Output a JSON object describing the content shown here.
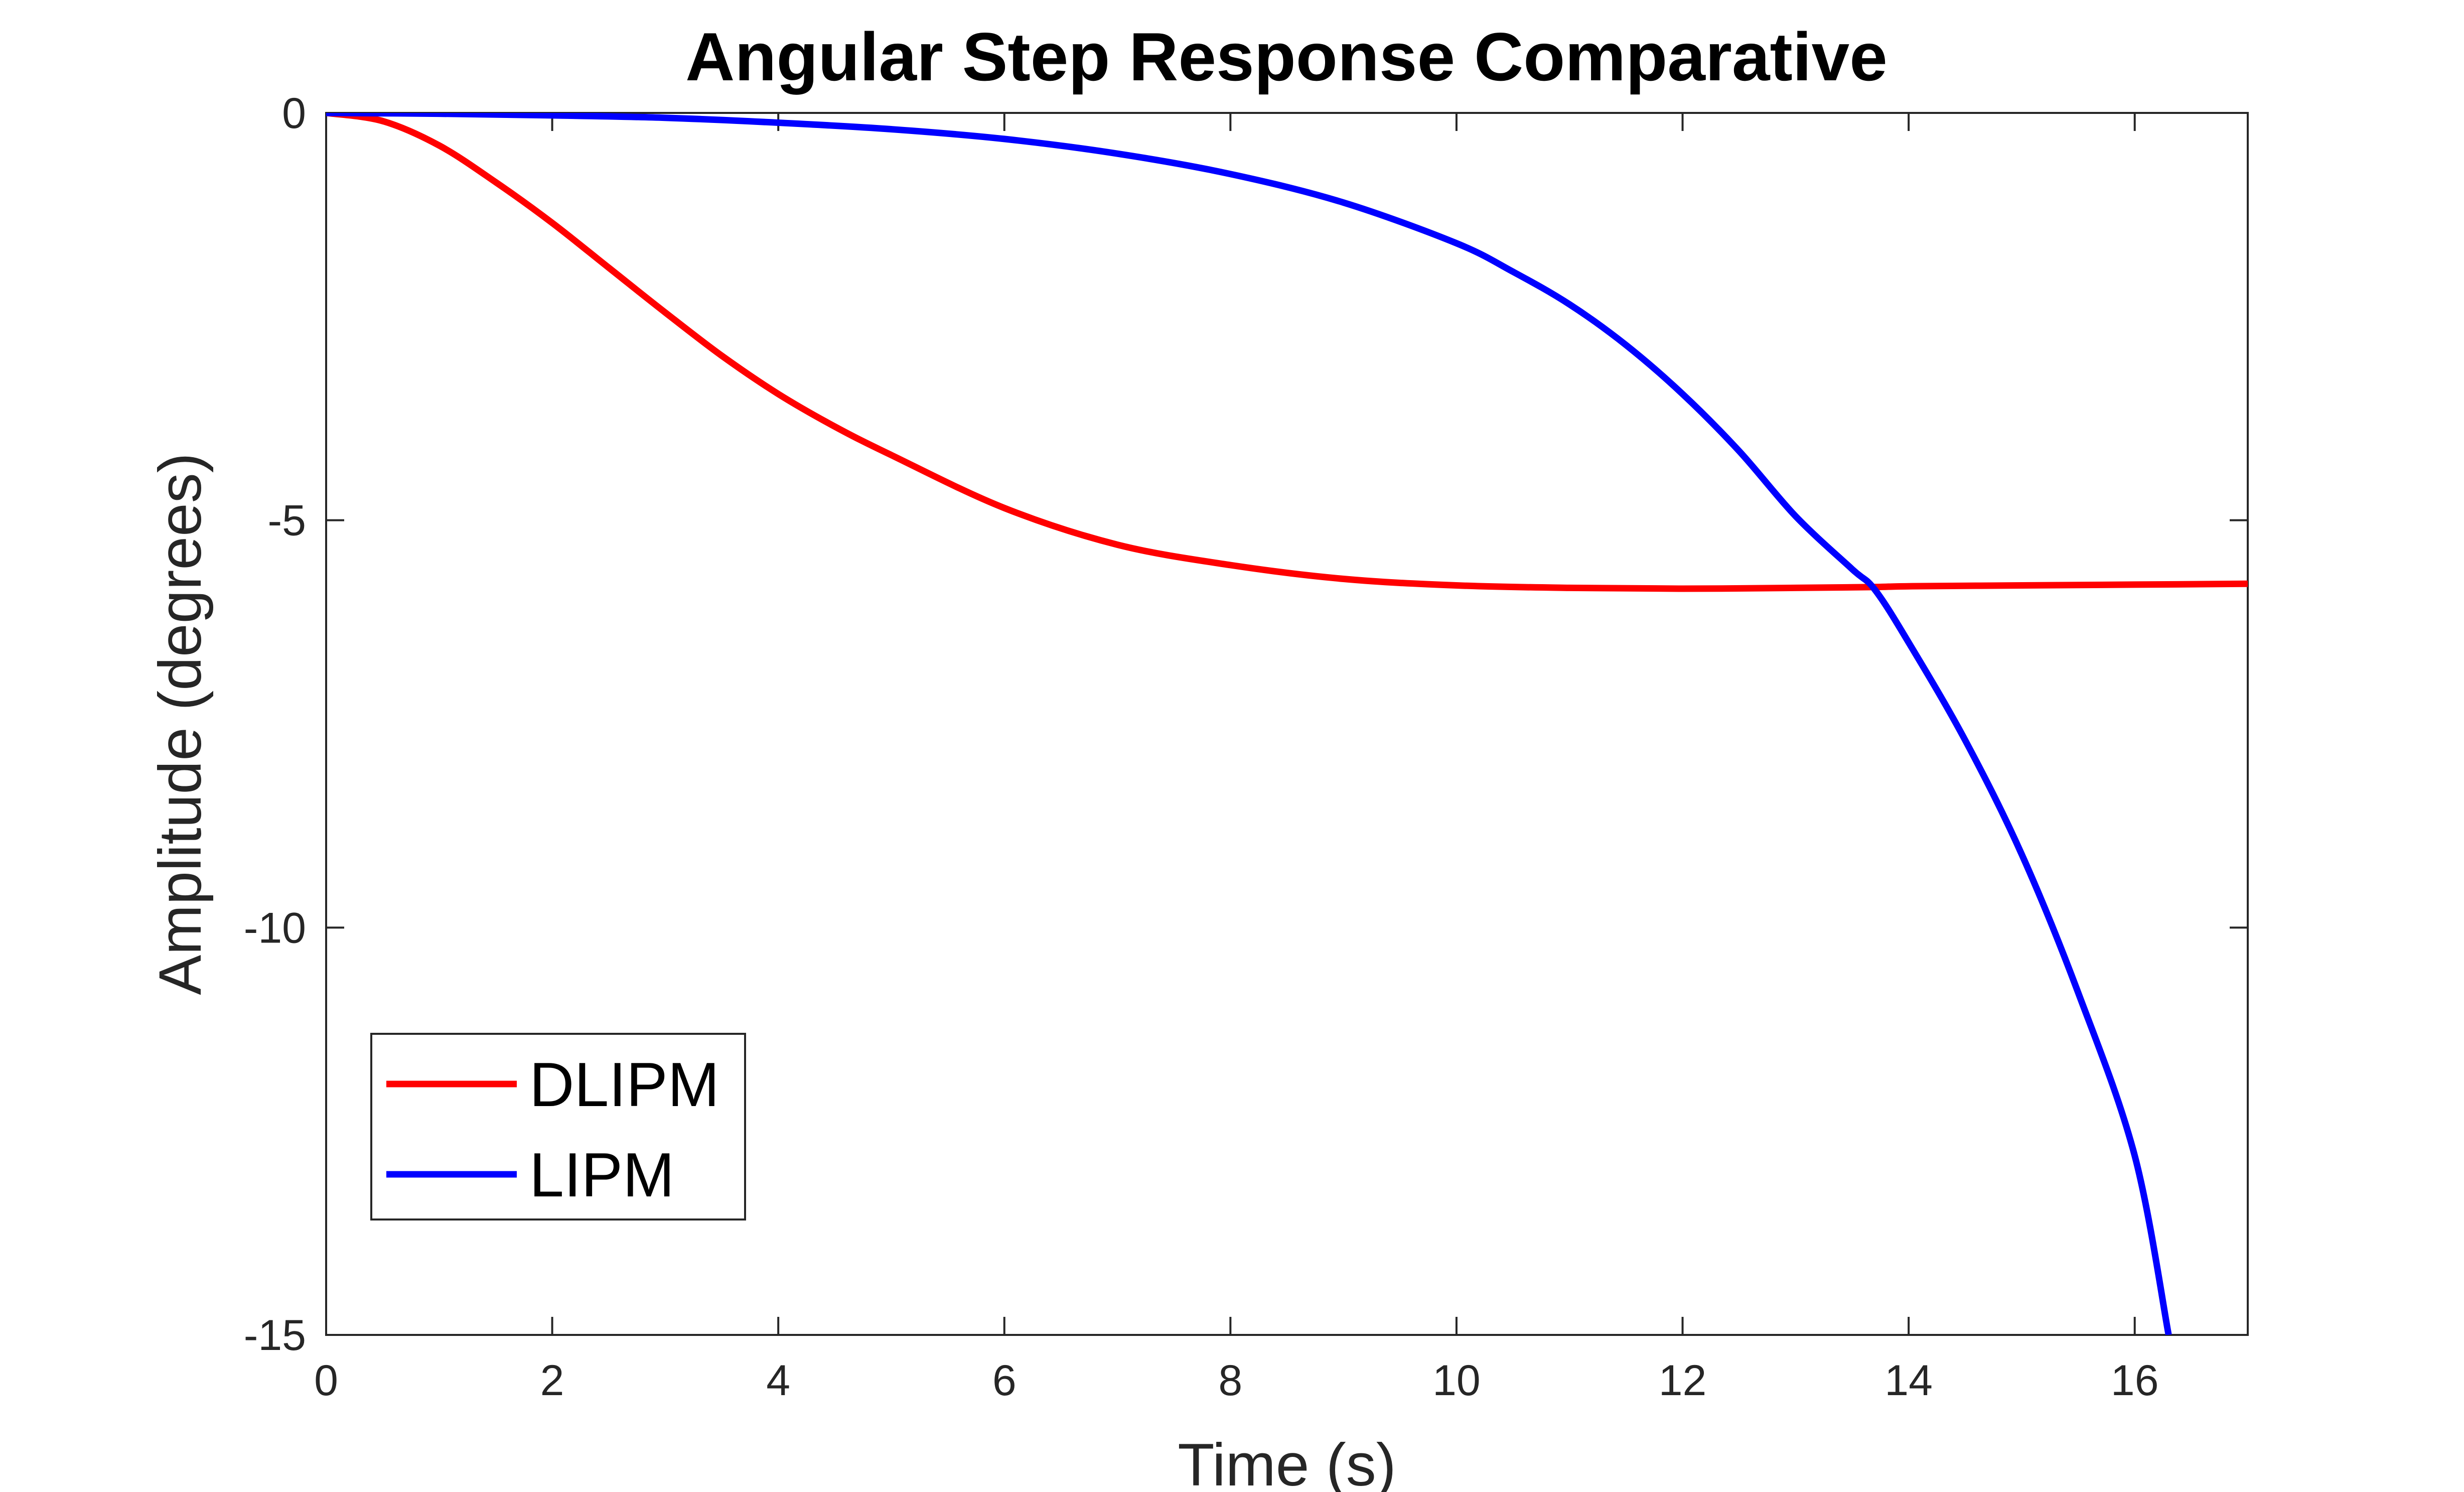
{
  "chart_data": {
    "type": "line",
    "title": "Angular Step Response Comparative",
    "xlabel": "Time (s)",
    "ylabel": "Amplitude (degrees)",
    "xlim": [
      0,
      17
    ],
    "ylim": [
      -15,
      0
    ],
    "xticks": [
      0,
      2,
      4,
      6,
      8,
      10,
      12,
      14,
      16
    ],
    "yticks": [
      0,
      -5,
      -10,
      -15
    ],
    "xtick_labels": [
      "0",
      "2",
      "4",
      "6",
      "8",
      "10",
      "12",
      "14",
      "16"
    ],
    "ytick_labels": [
      "0",
      "-5",
      "-10",
      "-15"
    ],
    "grid": false,
    "legend_position": "bottom-left",
    "series": [
      {
        "name": "DLIPM",
        "color": "#ff0000",
        "x": [
          0,
          0.5,
          1,
          1.5,
          2,
          2.5,
          3,
          3.5,
          4,
          4.5,
          5,
          6,
          7,
          8,
          9,
          10,
          11,
          12,
          13,
          13.7,
          14,
          15,
          16,
          17
        ],
        "y": [
          0,
          -0.1,
          -0.4,
          -0.85,
          -1.35,
          -1.9,
          -2.45,
          -2.98,
          -3.45,
          -3.85,
          -4.2,
          -4.85,
          -5.3,
          -5.55,
          -5.72,
          -5.8,
          -5.83,
          -5.84,
          -5.83,
          -5.82,
          -5.81,
          -5.8,
          -5.79,
          -5.78
        ]
      },
      {
        "name": "LIPM",
        "color": "#0000ff",
        "x": [
          0,
          1,
          2,
          3,
          4,
          5,
          6,
          7,
          8,
          9,
          10,
          10.5,
          11,
          11.5,
          12,
          12.5,
          13,
          13.5,
          13.7,
          14,
          14.5,
          15,
          15.5,
          16,
          16.3
        ],
        "y": [
          0,
          -0.01,
          -0.03,
          -0.06,
          -0.12,
          -0.2,
          -0.32,
          -0.5,
          -0.75,
          -1.1,
          -1.6,
          -1.95,
          -2.35,
          -2.85,
          -3.45,
          -4.15,
          -4.95,
          -5.6,
          -5.85,
          -6.5,
          -7.7,
          -9.1,
          -10.8,
          -12.8,
          -15
        ]
      }
    ]
  }
}
